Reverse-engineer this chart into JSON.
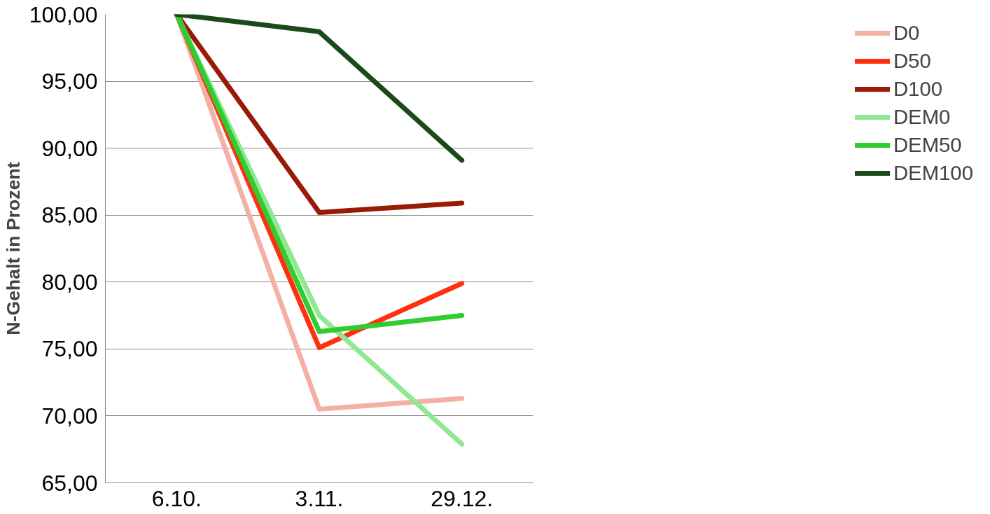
{
  "chart_data": {
    "type": "line",
    "ylabel": "N-Gehalt in Prozent",
    "categories": [
      "6.10.",
      "3.11.",
      "29.12."
    ],
    "series": [
      {
        "name": "D0",
        "color": "#f4b0a4",
        "values": [
          100,
          70.5,
          71.3
        ]
      },
      {
        "name": "D50",
        "color": "#ff3010",
        "values": [
          100,
          75.1,
          79.9
        ]
      },
      {
        "name": "D100",
        "color": "#9a1a08",
        "values": [
          100,
          85.2,
          85.9
        ]
      },
      {
        "name": "DEM0",
        "color": "#90e890",
        "values": [
          100,
          77.5,
          67.9
        ]
      },
      {
        "name": "DEM50",
        "color": "#30cc30",
        "values": [
          100,
          76.3,
          77.5
        ]
      },
      {
        "name": "DEM100",
        "color": "#1a4a1a",
        "values": [
          100,
          98.7,
          89.1
        ]
      }
    ],
    "ylim": [
      65,
      100
    ],
    "yticks": [
      {
        "value": 65,
        "label": "65,00"
      },
      {
        "value": 70,
        "label": "70,00"
      },
      {
        "value": 75,
        "label": "75,00"
      },
      {
        "value": 80,
        "label": "80,00"
      },
      {
        "value": 85,
        "label": "85,00"
      },
      {
        "value": 90,
        "label": "90,00"
      },
      {
        "value": 95,
        "label": "95,00"
      },
      {
        "value": 100,
        "label": "100,00"
      }
    ],
    "grid": "y",
    "legend": "right",
    "marker": "none",
    "line_style": "solid"
  }
}
